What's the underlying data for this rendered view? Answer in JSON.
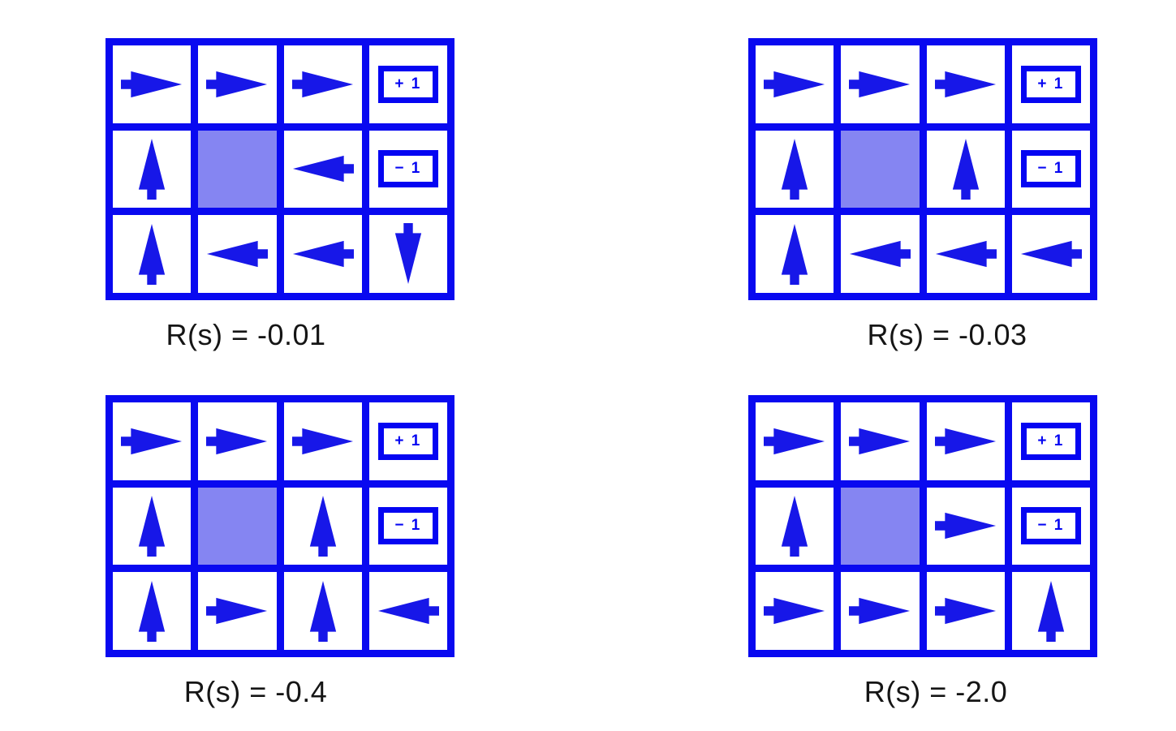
{
  "figure": {
    "description": "Optimal policies for a 4x3 gridworld under four different state reward values",
    "colors": {
      "grid_line_blue": "#0909f0",
      "arrow_blue": "#1717e8",
      "blocked_cell_fill": "#8585f2",
      "badge_border_blue": "#0505f2",
      "caption_text": "#151515",
      "background": "#ffffff"
    }
  },
  "terminal": {
    "plus_label": "+ 1",
    "minus_label": "− 1"
  },
  "grids": [
    {
      "label": "R(s) = -0.01",
      "rows": [
        [
          "right",
          "right",
          "right",
          "+1"
        ],
        [
          "up",
          "blocked",
          "left",
          "-1"
        ],
        [
          "up",
          "left",
          "left",
          "down"
        ]
      ]
    },
    {
      "label": "R(s) = -0.03",
      "rows": [
        [
          "right",
          "right",
          "right",
          "+1"
        ],
        [
          "up",
          "blocked",
          "up",
          "-1"
        ],
        [
          "up",
          "left",
          "left",
          "left"
        ]
      ]
    },
    {
      "label": "R(s) = -0.4",
      "rows": [
        [
          "right",
          "right",
          "right",
          "+1"
        ],
        [
          "up",
          "blocked",
          "up",
          "-1"
        ],
        [
          "up",
          "right",
          "up",
          "left"
        ]
      ]
    },
    {
      "label": "R(s) = -2.0",
      "rows": [
        [
          "right",
          "right",
          "right",
          "+1"
        ],
        [
          "up",
          "blocked",
          "right",
          "-1"
        ],
        [
          "right",
          "right",
          "right",
          "up"
        ]
      ]
    }
  ]
}
